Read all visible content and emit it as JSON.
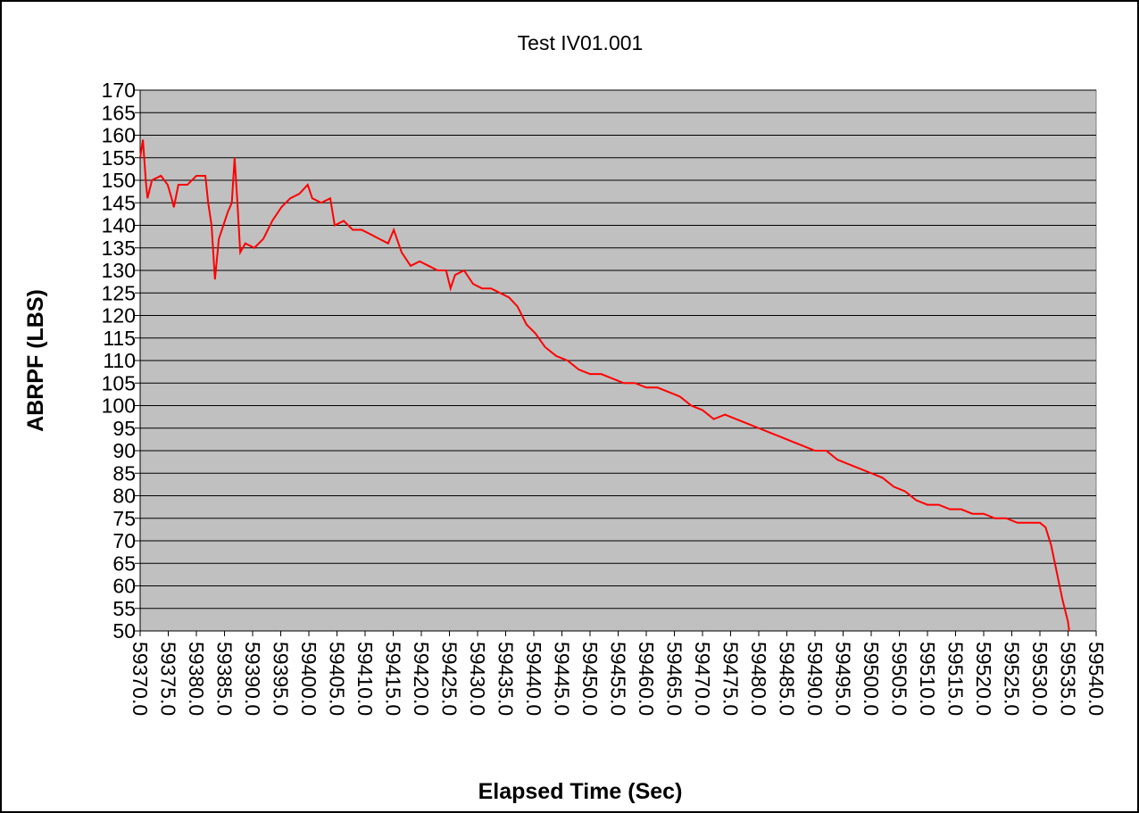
{
  "chart_data": {
    "type": "line",
    "title": "Test IV01.001",
    "xlabel": "Elapsed Time (Sec)",
    "ylabel": "ABRPF (LBS)",
    "x": [
      59370.0,
      59370.5,
      59371.0,
      59371.3,
      59372.1,
      59373.7,
      59374.9,
      59375.6,
      59376.0,
      59376.8,
      59378.4,
      59380.0,
      59381.6,
      59382.1,
      59382.7,
      59383.3,
      59384.0,
      59384.8,
      59385.6,
      59386.3,
      59386.8,
      59387.3,
      59387.8,
      59388.7,
      59390.3,
      59391.9,
      59393.5,
      59395.1,
      59396.7,
      59398.3,
      59399.8,
      59400.6,
      59402.2,
      59403.8,
      59404.6,
      59406.2,
      59407.8,
      59409.4,
      59411.0,
      59412.5,
      59414.1,
      59415.1,
      59416.5,
      59418.1,
      59419.7,
      59421.3,
      59422.9,
      59424.4,
      59425.2,
      59426.0,
      59427.6,
      59429.2,
      59430.8,
      59432.4,
      59434.0,
      59435.6,
      59437.1,
      59438.7,
      59440.3,
      59442,
      59444,
      59446,
      59448,
      59450,
      59452,
      59454,
      59456,
      59458,
      59460,
      59462,
      59464,
      59466,
      59468,
      59470,
      59472,
      59474,
      59476,
      59478,
      59480,
      59482,
      59484,
      59486,
      59488,
      59490,
      59492,
      59494,
      59496,
      59498,
      59500,
      59502,
      59504,
      59506,
      59508,
      59510,
      59512,
      59514,
      59516,
      59518,
      59520,
      59522,
      59524,
      59526,
      59528,
      59530,
      59531,
      59532,
      59533,
      59534,
      59535,
      59535.2
    ],
    "series": [
      {
        "name": "ABRPF",
        "color": "#ff0000",
        "values": [
          155,
          159,
          150,
          146,
          150,
          151,
          149,
          146,
          144,
          149,
          149,
          151,
          151,
          145,
          140,
          128,
          137,
          140,
          143,
          145,
          155,
          145,
          134,
          136,
          135,
          137,
          141,
          144,
          146,
          147,
          149,
          146,
          145,
          146,
          140,
          141,
          139,
          139,
          138,
          137,
          136,
          139,
          134,
          131,
          132,
          131,
          130,
          130,
          126,
          129,
          130,
          127,
          126,
          126,
          125,
          124,
          122,
          118,
          116,
          113,
          111,
          110,
          108,
          107,
          107,
          106,
          105,
          105,
          104,
          104,
          103,
          102,
          100,
          99,
          97,
          98,
          97,
          96,
          95,
          94,
          93,
          92,
          91,
          90,
          90,
          88,
          87,
          86,
          85,
          84,
          82,
          81,
          79,
          78,
          78,
          77,
          77,
          76,
          76,
          75,
          75,
          74,
          74,
          74,
          73,
          69,
          63,
          57,
          52,
          50
        ]
      }
    ],
    "xlim": [
      59370,
      59540
    ],
    "ylim": [
      50,
      170
    ],
    "xticks": [
      {
        "value": 59370,
        "label": "59370.0"
      },
      {
        "value": 59375,
        "label": "59375.0"
      },
      {
        "value": 59380,
        "label": "59380.0"
      },
      {
        "value": 59385,
        "label": "59385.0"
      },
      {
        "value": 59390,
        "label": "59390.0"
      },
      {
        "value": 59395,
        "label": "59395.0"
      },
      {
        "value": 59400,
        "label": "59400.0"
      },
      {
        "value": 59405,
        "label": "59405.0"
      },
      {
        "value": 59410,
        "label": "59410.0"
      },
      {
        "value": 59415,
        "label": "59415.0"
      },
      {
        "value": 59420,
        "label": "59420.0"
      },
      {
        "value": 59425,
        "label": "59425.0"
      },
      {
        "value": 59430,
        "label": "59430.0"
      },
      {
        "value": 59435,
        "label": "59435.0"
      },
      {
        "value": 59440,
        "label": "59440.0"
      },
      {
        "value": 59445,
        "label": "59445.0"
      },
      {
        "value": 59450,
        "label": "59450.0"
      },
      {
        "value": 59455,
        "label": "59455.0"
      },
      {
        "value": 59460,
        "label": "59460.0"
      },
      {
        "value": 59465,
        "label": "59465.0"
      },
      {
        "value": 59470,
        "label": "59470.0"
      },
      {
        "value": 59475,
        "label": "59475.0"
      },
      {
        "value": 59480,
        "label": "59480.0"
      },
      {
        "value": 59485,
        "label": "59485.0"
      },
      {
        "value": 59490,
        "label": "59490.0"
      },
      {
        "value": 59495,
        "label": "59495.0"
      },
      {
        "value": 59500,
        "label": "59500.0"
      },
      {
        "value": 59505,
        "label": "59505.0"
      },
      {
        "value": 59510,
        "label": "59510.0"
      },
      {
        "value": 59515,
        "label": "59515.0"
      },
      {
        "value": 59520,
        "label": "59520.0"
      },
      {
        "value": 59525,
        "label": "59525.0"
      },
      {
        "value": 59530,
        "label": "59530.0"
      },
      {
        "value": 59535,
        "label": "59535.0"
      },
      {
        "value": 59540,
        "label": "59540.0"
      }
    ],
    "yticks": [
      50,
      55,
      60,
      65,
      70,
      75,
      80,
      85,
      90,
      95,
      100,
      105,
      110,
      115,
      120,
      125,
      130,
      135,
      140,
      145,
      150,
      155,
      160,
      165,
      170
    ],
    "grid": true
  }
}
